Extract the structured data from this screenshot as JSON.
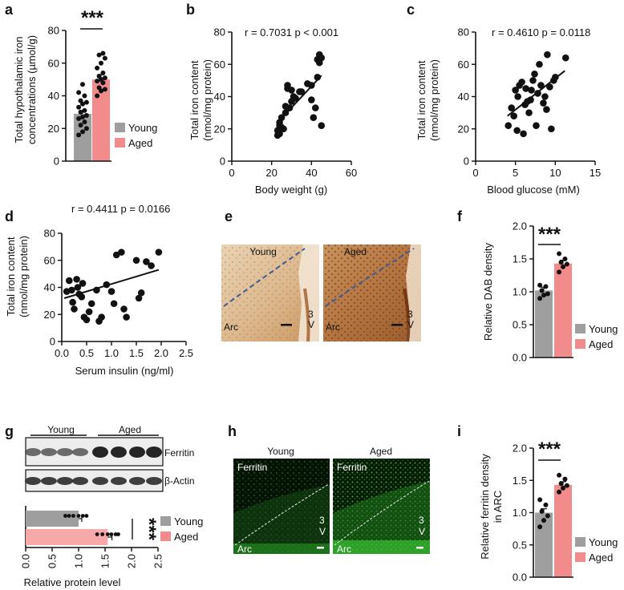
{
  "panel_labels": [
    "a",
    "b",
    "c",
    "d",
    "e",
    "f",
    "g",
    "h",
    "i"
  ],
  "colors": {
    "young": "#9e9e9e",
    "aged": "#f28c8c",
    "aged_light": "#f7a8a8",
    "dots": "#111111"
  },
  "panel_a": {
    "label": "a",
    "ylabel_line1": "Total hypothalamic iron",
    "ylabel_line2": "concentrations (µmol/g)",
    "significance": "***",
    "legend": [
      "Young",
      "Aged"
    ]
  },
  "panel_b": {
    "label": "b",
    "stat_text": "r = 0.7031 p < 0.001",
    "ylabel_line1": "Total iron content",
    "ylabel_line2": "(nmol/mg protein)",
    "xlabel": "Body weight (g)"
  },
  "panel_c": {
    "label": "c",
    "stat_text": "r = 0.4610  p = 0.0118",
    "ylabel_line1": "Total iron content",
    "ylabel_line2": "(nmol/mg protein)",
    "xlabel": "Blood  glucose (mM)"
  },
  "panel_d": {
    "label": "d",
    "stat_text": "r = 0.4411 p = 0.0166",
    "ylabel_line1": "Total iron content",
    "ylabel_line2": "(nmol/mg protein)",
    "xlabel": "Serum insulin (ng/ml)"
  },
  "panel_e": {
    "label": "e",
    "young_title": "Young",
    "aged_title": "Aged",
    "region": "Arc",
    "ventricle_1": "3",
    "ventricle_2": "V"
  },
  "panel_f": {
    "label": "f",
    "ylabel": "Relative DAB density",
    "significance": "***",
    "legend": [
      "Young",
      "Aged"
    ]
  },
  "panel_g": {
    "label": "g",
    "group_young": "Young",
    "group_aged": "Aged",
    "band_1": "Ferritin",
    "band_2": "β-Actin",
    "xlabel": "Relative protein level",
    "significance": "***",
    "legend": [
      "Young",
      "Aged"
    ]
  },
  "panel_h": {
    "label": "h",
    "young_title": "Young",
    "aged_title": "Aged",
    "stain": "Ferritin",
    "region": "Arc",
    "ventricle_1": "3",
    "ventricle_2": "V"
  },
  "panel_i": {
    "label": "i",
    "ylabel_line1": "Relative ferritin density",
    "ylabel_line2": "in ARC",
    "significance": "***",
    "legend": [
      "Young",
      "Aged"
    ]
  },
  "chart_data": [
    {
      "id": "a",
      "type": "bar",
      "categories": [
        "Young",
        "Aged"
      ],
      "values": [
        29,
        50
      ],
      "errors": [
        2,
        3
      ],
      "points": [
        [
          16,
          18,
          20,
          22,
          24,
          26,
          27,
          28,
          30,
          31,
          33,
          35,
          36,
          37,
          40,
          42,
          47
        ],
        [
          40,
          43,
          44,
          45,
          48,
          49,
          50,
          51,
          52,
          54,
          57,
          60,
          63,
          65,
          66
        ]
      ],
      "ylim": [
        0,
        80
      ],
      "yticks": [
        0,
        20,
        40,
        60,
        80
      ],
      "ylabel": "Total hypothalamic iron concentrations (µmol/g)"
    },
    {
      "id": "b",
      "type": "scatter",
      "title": "r = 0.7031 p < 0.001",
      "xlim": [
        0,
        60
      ],
      "ylim": [
        0,
        80
      ],
      "xticks": [
        0,
        20,
        40,
        60
      ],
      "yticks": [
        0,
        20,
        40,
        60,
        80
      ],
      "xlabel": "Body weight (g)",
      "ylabel": "Total iron content (nmol/mg protein)",
      "x": [
        23,
        23,
        24,
        24,
        24,
        25,
        25,
        26,
        27,
        27,
        28,
        28,
        29,
        30,
        30,
        31,
        32,
        34,
        35,
        38,
        40,
        40,
        41,
        42,
        43,
        43,
        44,
        44,
        45,
        45
      ],
      "y": [
        16,
        19,
        22,
        24,
        17,
        21,
        27,
        20,
        30,
        34,
        45,
        47,
        33,
        37,
        44,
        40,
        39,
        43,
        43,
        48,
        38,
        47,
        27,
        33,
        52,
        63,
        66,
        61,
        64,
        22
      ],
      "fit": [
        [
          23,
          24
        ],
        [
          45,
          53
        ]
      ]
    },
    {
      "id": "c",
      "type": "scatter",
      "title": "r = 0.4610  p = 0.0118",
      "xlim": [
        0,
        15
      ],
      "ylim": [
        0,
        80
      ],
      "xticks": [
        0,
        5,
        10,
        15
      ],
      "yticks": [
        0,
        20,
        40,
        60,
        80
      ],
      "xlabel": "Blood  glucose (mM)",
      "ylabel": "Total iron content (nmol/mg protein)",
      "x": [
        4.1,
        4.5,
        4.8,
        5.0,
        5.3,
        5.5,
        5.8,
        6.0,
        6.2,
        6.3,
        6.5,
        6.7,
        7.0,
        7.2,
        7.4,
        7.6,
        7.8,
        8.0,
        8.2,
        8.5,
        8.7,
        9.0,
        9.3,
        9.5,
        9.8,
        10.0,
        11.3,
        5.2,
        6.9,
        8.9
      ],
      "y": [
        22,
        33,
        28,
        44,
        40,
        47,
        49,
        17,
        35,
        45,
        37,
        30,
        44,
        50,
        54,
        22,
        42,
        60,
        47,
        36,
        40,
        66,
        46,
        20,
        50,
        52,
        64,
        19,
        38,
        32
      ],
      "fit": [
        [
          4,
          28
        ],
        [
          11.2,
          56
        ]
      ]
    },
    {
      "id": "d",
      "type": "scatter",
      "title": "r = 0.4411 p = 0.0166",
      "xlim": [
        0,
        2.5
      ],
      "ylim": [
        0,
        80
      ],
      "xticks": [
        0.0,
        0.5,
        1.0,
        1.5,
        2.0,
        2.5
      ],
      "yticks": [
        0,
        20,
        40,
        60,
        80
      ],
      "xlabel": "Serum insulin (ng/ml)",
      "ylabel": "Total iron content (nmol/mg protein)",
      "x": [
        0.1,
        0.15,
        0.2,
        0.22,
        0.25,
        0.3,
        0.32,
        0.35,
        0.4,
        0.42,
        0.45,
        0.5,
        0.55,
        0.6,
        0.7,
        0.75,
        0.8,
        0.9,
        1.0,
        1.05,
        1.1,
        1.2,
        1.25,
        1.3,
        1.5,
        1.55,
        1.6,
        1.7,
        1.8,
        1.95
      ],
      "y": [
        37,
        45,
        38,
        29,
        24,
        46,
        40,
        35,
        33,
        43,
        18,
        16,
        22,
        28,
        38,
        15,
        18,
        42,
        37,
        28,
        64,
        66,
        24,
        18,
        60,
        32,
        36,
        59,
        56,
        66
      ],
      "fit": [
        [
          0.05,
          32
        ],
        [
          1.95,
          53
        ]
      ]
    },
    {
      "id": "f",
      "type": "bar",
      "categories": [
        "Young",
        "Aged"
      ],
      "values": [
        1.02,
        1.43
      ],
      "errors": [
        0.05,
        0.05
      ],
      "points": [
        [
          0.9,
          0.95,
          0.97,
          1.02,
          1.08,
          1.1
        ],
        [
          1.3,
          1.38,
          1.42,
          1.45,
          1.5,
          1.58
        ]
      ],
      "ylim": [
        0,
        2.0
      ],
      "yticks": [
        0.0,
        0.5,
        1.0,
        1.5,
        2.0
      ],
      "ylabel": "Relative DAB density"
    },
    {
      "id": "g",
      "type": "bar",
      "orientation": "horizontal",
      "categories": [
        "Young",
        "Aged"
      ],
      "values": [
        1.0,
        1.55
      ],
      "errors": [
        0.06,
        0.08
      ],
      "points": [
        [
          0.75,
          0.82,
          0.9,
          1.0,
          1.08,
          1.15
        ],
        [
          1.35,
          1.45,
          1.55,
          1.62,
          1.7,
          1.75
        ]
      ],
      "xlim": [
        0,
        2.5
      ],
      "xticks": [
        0.0,
        0.5,
        1.0,
        1.5,
        2.0,
        2.5
      ],
      "xlabel": "Relative protein level"
    },
    {
      "id": "i",
      "type": "bar",
      "categories": [
        "Young",
        "Aged"
      ],
      "values": [
        1.0,
        1.43
      ],
      "errors": [
        0.06,
        0.05
      ],
      "points": [
        [
          0.78,
          0.88,
          0.95,
          1.02,
          1.12,
          1.2
        ],
        [
          1.32,
          1.38,
          1.42,
          1.45,
          1.52,
          1.58
        ]
      ],
      "ylim": [
        0,
        2.0
      ],
      "yticks": [
        0.0,
        0.5,
        1.0,
        1.5,
        2.0
      ],
      "ylabel": "Relative ferritin density in ARC"
    }
  ]
}
